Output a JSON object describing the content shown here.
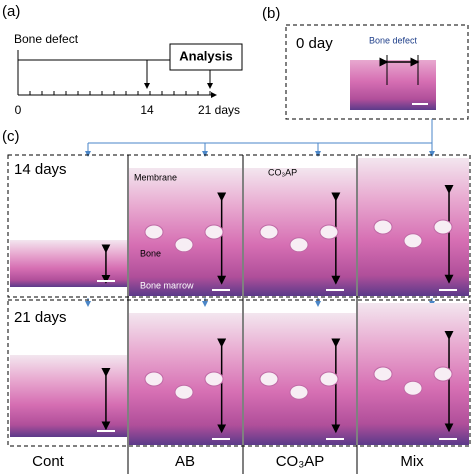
{
  "panel_a": {
    "label": "(a)",
    "start_label": "Bone defect",
    "end_label": "Analysis",
    "ticks": [
      "0",
      "14",
      "21 days"
    ]
  },
  "panel_b": {
    "label": "(b)",
    "title": "0 day",
    "annotation": "Bone defect"
  },
  "panel_c": {
    "label": "(c)",
    "rows": [
      "14 days",
      "21 days"
    ],
    "annotations": {
      "membrane": "Membrane",
      "co3ap": "CO₃AP",
      "bone": "Bone",
      "bone_marrow": "Bone marrow"
    },
    "columns": [
      "Cont",
      "AB",
      "CO₃AP",
      "Mix"
    ]
  }
}
